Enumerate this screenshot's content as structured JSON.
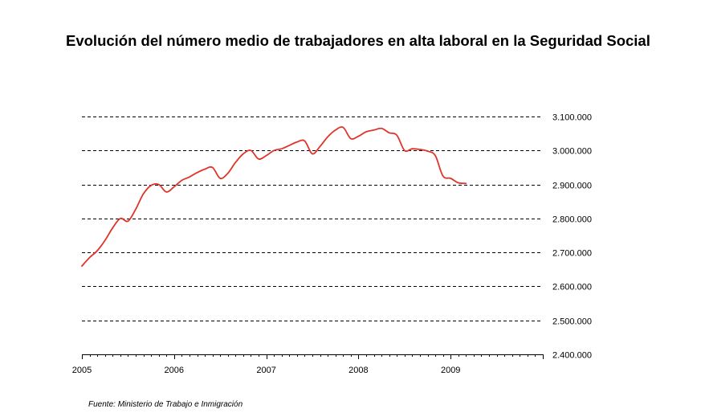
{
  "title": "Evolución del número medio de trabajadores en alta laboral en la Seguridad Social",
  "source": "Fuente: Ministerio de Trabajo e Inmigración",
  "chart_data": {
    "type": "line",
    "title": "Evolución del número medio de trabajadores en alta laboral en la Seguridad Social",
    "xlabel": "",
    "ylabel": "",
    "xlim": [
      "2005-01",
      "2009-12"
    ],
    "ylim": [
      2400000,
      3100000
    ],
    "grid": true,
    "legend": "none",
    "x_tick_labels": [
      "2005",
      "2006",
      "2007",
      "2008",
      "2009"
    ],
    "y_tick_labels": [
      "3.100.000",
      "3.000.000",
      "2.900.000",
      "2.800.000",
      "2.700.000",
      "2.600.000",
      "2.500.000",
      "2.400.000"
    ],
    "y_ticks": [
      3100000,
      3000000,
      2900000,
      2800000,
      2700000,
      2600000,
      2500000,
      2400000
    ],
    "colors": {
      "line": "#e0342a",
      "grid": "#000000"
    },
    "series": [
      {
        "x": [
          "2005-01",
          "2005-02",
          "2005-03",
          "2005-04",
          "2005-05",
          "2005-06",
          "2005-07",
          "2005-08",
          "2005-09",
          "2005-10",
          "2005-11",
          "2005-12",
          "2006-01",
          "2006-02",
          "2006-03",
          "2006-04",
          "2006-05",
          "2006-06",
          "2006-07",
          "2006-08",
          "2006-09",
          "2006-10",
          "2006-11",
          "2006-12",
          "2007-01",
          "2007-02",
          "2007-03",
          "2007-04",
          "2007-05",
          "2007-06",
          "2007-07",
          "2007-08",
          "2007-09",
          "2007-10",
          "2007-11",
          "2007-12",
          "2008-01",
          "2008-02",
          "2008-03",
          "2008-04",
          "2008-05",
          "2008-06",
          "2008-07",
          "2008-08",
          "2008-09",
          "2008-10",
          "2008-11",
          "2008-12",
          "2009-01",
          "2009-02",
          "2009-03"
        ],
        "values": [
          2660000,
          2685000,
          2705000,
          2735000,
          2772000,
          2800000,
          2792000,
          2827000,
          2872000,
          2897000,
          2900000,
          2878000,
          2893000,
          2912000,
          2922000,
          2935000,
          2945000,
          2950000,
          2918000,
          2933000,
          2965000,
          2990000,
          3000000,
          2975000,
          2985000,
          3000000,
          3005000,
          3015000,
          3025000,
          3028000,
          2990000,
          3012000,
          3040000,
          3060000,
          3068000,
          3035000,
          3042000,
          3055000,
          3060000,
          3065000,
          3052000,
          3045000,
          3000000,
          3005000,
          3003000,
          2998000,
          2985000,
          2925000,
          2918000,
          2905000,
          2903000
        ]
      }
    ]
  }
}
